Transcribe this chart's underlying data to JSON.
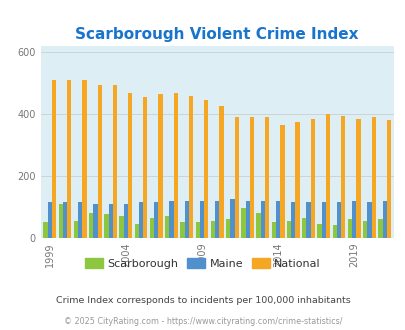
{
  "title": "Scarborough Violent Crime Index",
  "title_color": "#1874cd",
  "years": [
    1999,
    2000,
    2001,
    2002,
    2003,
    2004,
    2005,
    2006,
    2007,
    2008,
    2009,
    2010,
    2011,
    2012,
    2013,
    2014,
    2015,
    2016,
    2017,
    2018,
    2019,
    2020,
    2021
  ],
  "scarborough": [
    50,
    110,
    55,
    80,
    75,
    70,
    45,
    65,
    70,
    50,
    50,
    55,
    60,
    95,
    80,
    50,
    55,
    65,
    45,
    40,
    60,
    55,
    60
  ],
  "maine": [
    115,
    115,
    115,
    110,
    110,
    110,
    115,
    115,
    120,
    120,
    120,
    120,
    125,
    120,
    120,
    120,
    115,
    115,
    115,
    115,
    120,
    115,
    120
  ],
  "national": [
    510,
    510,
    510,
    495,
    495,
    470,
    455,
    465,
    470,
    460,
    445,
    425,
    390,
    390,
    390,
    365,
    375,
    385,
    400,
    395,
    385,
    390,
    380
  ],
  "color_scarborough": "#8dc63f",
  "color_maine": "#4f90cd",
  "color_national": "#f5a623",
  "bg_color": "#ddeef5",
  "ylabel_ticks": [
    0,
    200,
    400,
    600
  ],
  "ylim": [
    0,
    620
  ],
  "xlabel_ticks": [
    1999,
    2004,
    2009,
    2014,
    2019
  ],
  "note": "Crime Index corresponds to incidents per 100,000 inhabitants",
  "footer": "© 2025 CityRating.com - https://www.cityrating.com/crime-statistics/",
  "note_color": "#444444",
  "footer_color": "#999999",
  "title_fontsize": 11,
  "tick_fontsize": 7,
  "legend_fontsize": 8
}
